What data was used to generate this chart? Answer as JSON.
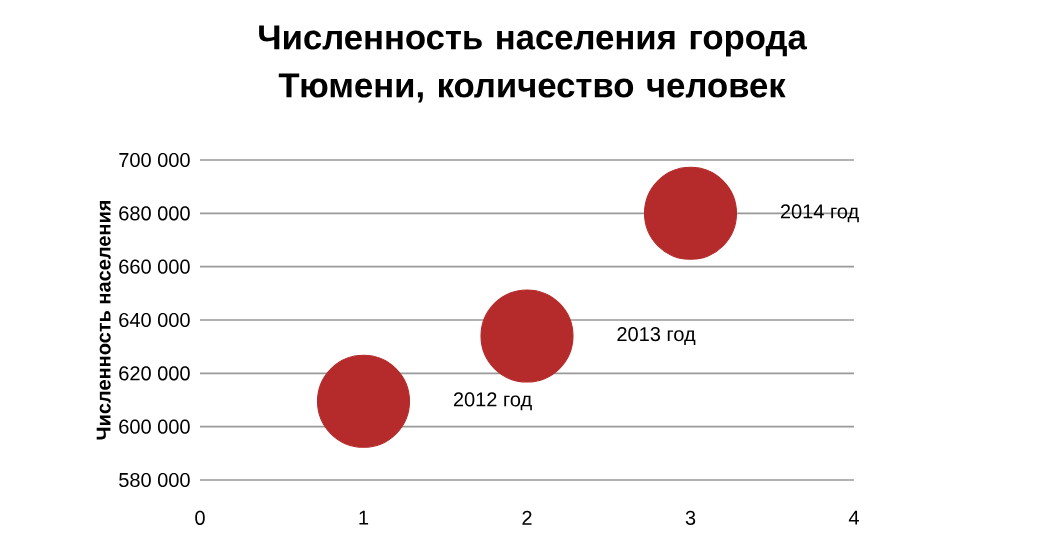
{
  "chart_data": {
    "type": "bubble",
    "title": "Численность населения города Тюмени, количество человек",
    "ylabel": "Численность населения",
    "x": [
      1,
      2,
      3
    ],
    "series": [
      {
        "color": "#b52a2a",
        "values": [
          609500,
          634000,
          680000
        ],
        "sizes": [
          1,
          1,
          1
        ]
      }
    ],
    "xlim": [
      0,
      4
    ],
    "xticks": [
      0,
      1,
      2,
      3,
      4
    ],
    "ylim": [
      580000,
      700000
    ],
    "yticks": [
      {
        "value": 580000,
        "label": "580 000"
      },
      {
        "value": 600000,
        "label": "600 000"
      },
      {
        "value": 620000,
        "label": "620 000"
      },
      {
        "value": 640000,
        "label": "640 000"
      },
      {
        "value": 660000,
        "label": "660 000"
      },
      {
        "value": 680000,
        "label": "680 000"
      },
      {
        "value": 700000,
        "label": "700 000"
      }
    ],
    "grid": "y",
    "annotations": [
      "2012 год",
      "2013 год",
      "2014 год"
    ]
  }
}
